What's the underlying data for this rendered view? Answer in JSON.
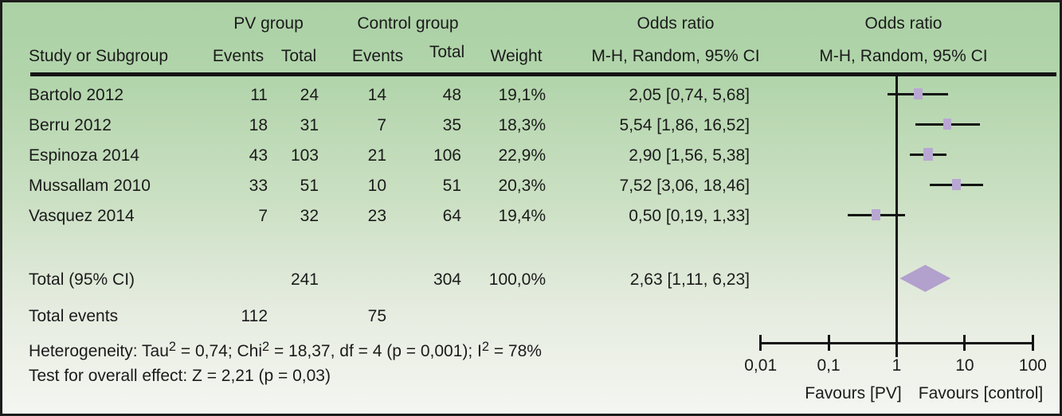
{
  "header": {
    "group_pv": "PV group",
    "group_control": "Control group",
    "or_title": "Odds ratio",
    "or_subtitle": "M-H, Random, 95% CI",
    "col_study": "Study or Subgroup",
    "col_events": "Events",
    "col_total": "Total",
    "col_events2": "Events",
    "col_total2": "Total",
    "col_weight": "Weight"
  },
  "studies": [
    {
      "name": "Bartolo 2012",
      "events_pv": "11",
      "total_pv": "24",
      "events_ctl": "14",
      "total_ctl": "48",
      "weight": "19,1%",
      "or_text": "2,05 [0,74, 5,68]",
      "or": 2.05,
      "ci_low": 0.74,
      "ci_high": 5.68,
      "weight_pct": 19.1
    },
    {
      "name": "Berru 2012",
      "events_pv": "18",
      "total_pv": "31",
      "events_ctl": "7",
      "total_ctl": "35",
      "weight": "18,3%",
      "or_text": "5,54 [1,86, 16,52]",
      "or": 5.54,
      "ci_low": 1.86,
      "ci_high": 16.52,
      "weight_pct": 18.3
    },
    {
      "name": "Espinoza 2014",
      "events_pv": "43",
      "total_pv": "103",
      "events_ctl": "21",
      "total_ctl": "106",
      "weight": "22,9%",
      "or_text": "2,90 [1,56, 5,38]",
      "or": 2.9,
      "ci_low": 1.56,
      "ci_high": 5.38,
      "weight_pct": 22.9
    },
    {
      "name": "Mussallam 2010",
      "events_pv": "33",
      "total_pv": "51",
      "events_ctl": "10",
      "total_ctl": "51",
      "weight": "20,3%",
      "or_text": "7,52 [3,06, 18,46]",
      "or": 7.52,
      "ci_low": 3.06,
      "ci_high": 18.46,
      "weight_pct": 20.3
    },
    {
      "name": "Vasquez 2014",
      "events_pv": "7",
      "total_pv": "32",
      "events_ctl": "23",
      "total_ctl": "64",
      "weight": "19,4%",
      "or_text": "0,50 [0,19, 1,33]",
      "or": 0.5,
      "ci_low": 0.19,
      "ci_high": 1.33,
      "weight_pct": 19.4
    }
  ],
  "total": {
    "label": "Total (95% CI)",
    "total_pv": "241",
    "total_ctl": "304",
    "weight": "100,0%",
    "or_text": "2,63 [1,11, 6,23]",
    "or": 2.63,
    "ci_low": 1.11,
    "ci_high": 6.23
  },
  "total_events": {
    "label": "Total events",
    "events_pv": "112",
    "events_ctl": "75"
  },
  "heterogeneity_segments": [
    {
      "t": "Heterogeneity: Tau"
    },
    {
      "t": "2",
      "sup": true
    },
    {
      "t": " = 0,74; Chi"
    },
    {
      "t": "2",
      "sup": true
    },
    {
      "t": " = 18,37, df = 4 (p = 0,001); I"
    },
    {
      "t": "2",
      "sup": true
    },
    {
      "t": " = 78%"
    }
  ],
  "overall_effect": "Test for overall effect: Z = 2,21 (p = 0,03)",
  "chart_data": {
    "type": "scatter",
    "subtype": "forest-plot",
    "title": "Odds ratio, M-H, Random, 95% CI",
    "x_scale": "log10",
    "xlim": [
      0.01,
      100
    ],
    "x_ticks": [
      0.01,
      0.1,
      1,
      10,
      100
    ],
    "x_tick_labels": [
      "0,01",
      "0,1",
      "1",
      "10",
      "100"
    ],
    "reference_line": 1,
    "series": [
      {
        "name": "Bartolo 2012",
        "or": 2.05,
        "ci": [
          0.74,
          5.68
        ],
        "weight_pct": 19.1
      },
      {
        "name": "Berru 2012",
        "or": 5.54,
        "ci": [
          1.86,
          16.52
        ],
        "weight_pct": 18.3
      },
      {
        "name": "Espinoza 2014",
        "or": 2.9,
        "ci": [
          1.56,
          5.38
        ],
        "weight_pct": 22.9
      },
      {
        "name": "Mussallam 2010",
        "or": 7.52,
        "ci": [
          3.06,
          18.46
        ],
        "weight_pct": 20.3
      },
      {
        "name": "Vasquez 2014",
        "or": 0.5,
        "ci": [
          0.19,
          1.33
        ],
        "weight_pct": 19.4
      }
    ],
    "pooled": {
      "name": "Total (95% CI)",
      "or": 2.63,
      "ci": [
        1.11,
        6.23
      ]
    },
    "xlabel_left": "Favours [PV]",
    "xlabel_right": "Favours [control]",
    "legend": "none",
    "grid": false
  },
  "colors": {
    "marker": "#b9a7d3",
    "diamond": "#b2a0cd",
    "line": "#131313",
    "background_top": "#abd1a5",
    "background_bottom": "#f4f6f1"
  }
}
